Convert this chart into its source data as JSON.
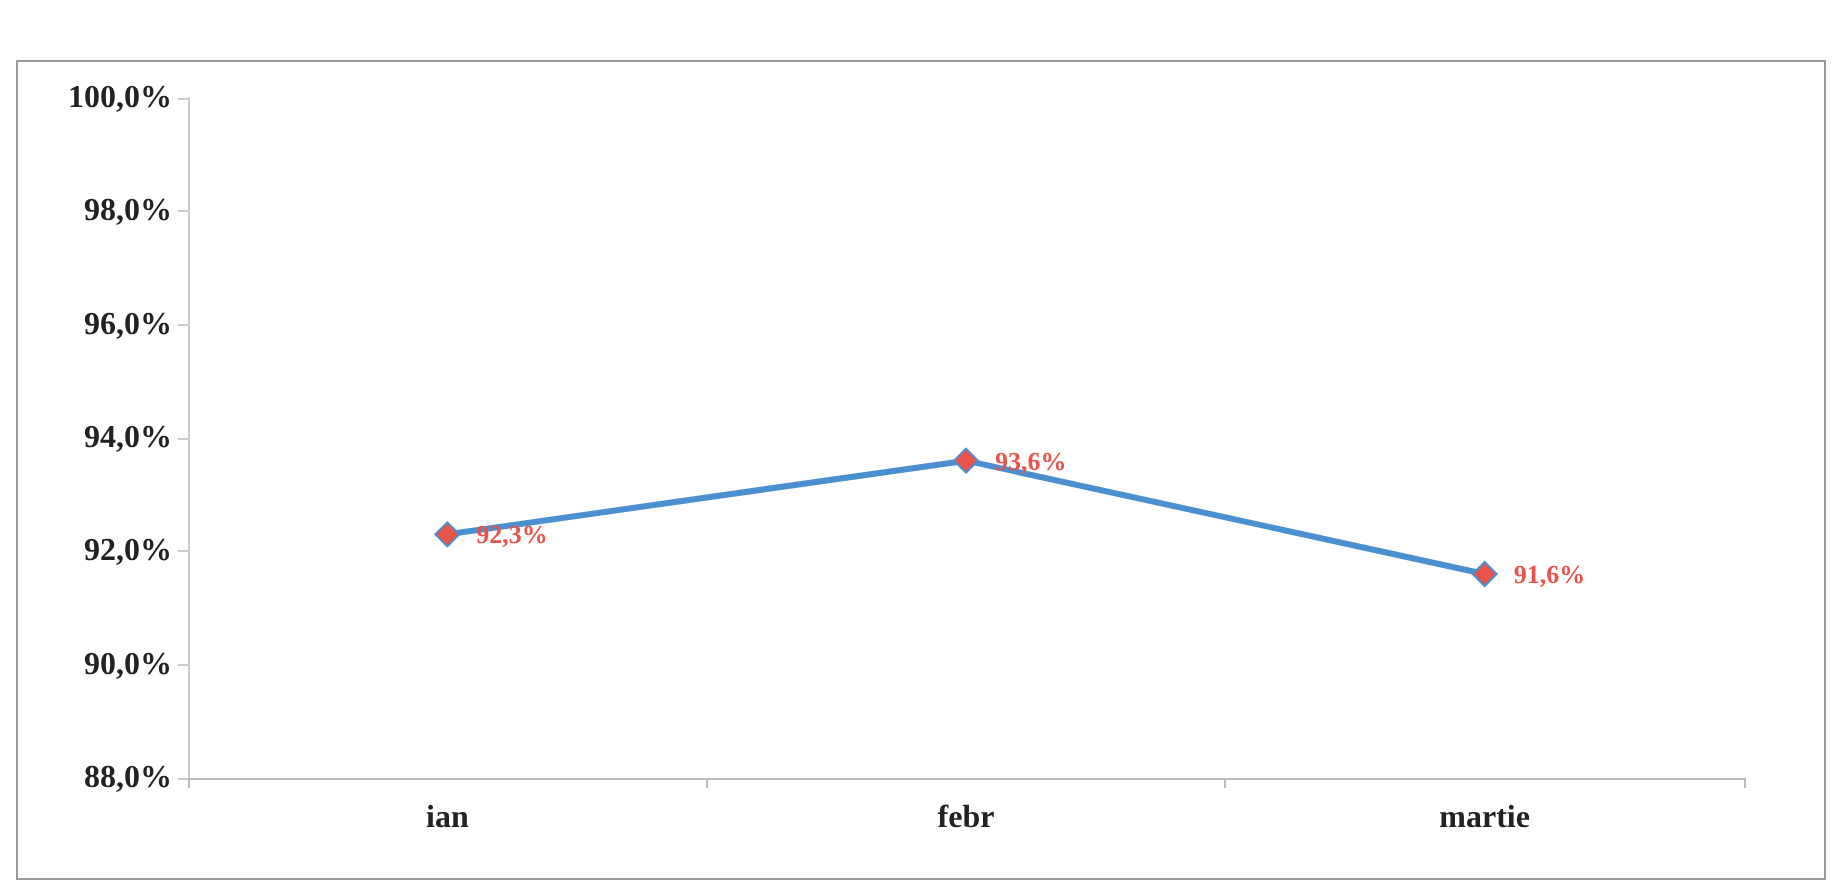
{
  "chart_data": {
    "type": "line",
    "categories": [
      "ian",
      "febr",
      "martie"
    ],
    "series": [
      {
        "color": "#4a8fd0",
        "colors": [
          "#e8534a",
          "#e8534a",
          "#e8534a"
        ],
        "values": [
          92.3,
          93.6,
          91.6
        ],
        "value_labels": [
          "92,3%",
          "93,6%",
          "91,6%"
        ]
      }
    ],
    "ylim": [
      88,
      100
    ],
    "yticks": [
      {
        "value": 88,
        "label": "88,0%"
      },
      {
        "value": 90,
        "label": "90,0%"
      },
      {
        "value": 92,
        "label": "92,0%"
      },
      {
        "value": 94,
        "label": "94,0%"
      },
      {
        "value": 96,
        "label": "96,0%"
      },
      {
        "value": 98,
        "label": "98,0%"
      },
      {
        "value": 100,
        "label": "100,0%"
      }
    ],
    "marker": "diamond",
    "grid": false
  }
}
